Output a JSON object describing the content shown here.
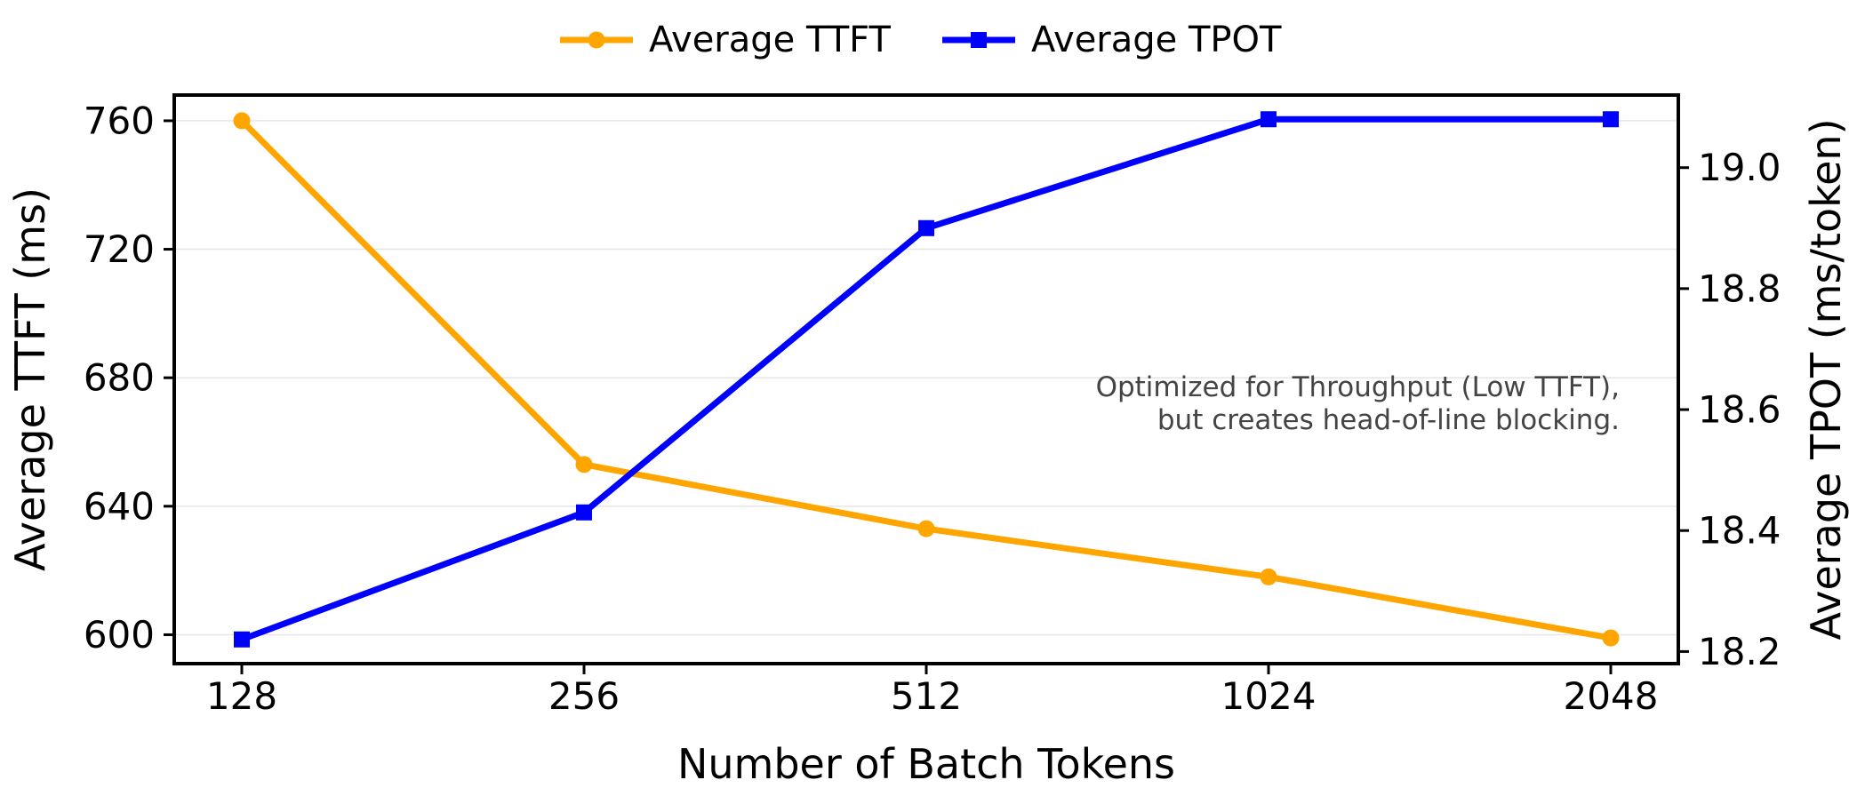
{
  "chart_data": {
    "type": "line",
    "x": [
      "128",
      "256",
      "512",
      "1024",
      "2048"
    ],
    "xlabel": "Number of Batch Tokens",
    "ylabel_left": "Average TTFT (ms)",
    "ylabel_right": "Average TPOT (ms/token)",
    "ylim_left": [
      591,
      768
    ],
    "ylim_right": [
      18.18,
      19.12
    ],
    "yticks_left": [
      600,
      640,
      680,
      720,
      760
    ],
    "yticks_right": [
      18.2,
      18.4,
      18.6,
      18.8,
      19.0
    ],
    "ytick_labels_left": [
      "600",
      "640",
      "680",
      "720",
      "760"
    ],
    "ytick_labels_right": [
      "18.2",
      "18.4",
      "18.6",
      "18.8",
      "19.0"
    ],
    "grid": true,
    "legend_position": "top-center",
    "series": [
      {
        "name": "Average TTFT",
        "axis": "left",
        "marker": "circle",
        "color": "#FFA500",
        "values": [
          760,
          653,
          633,
          618,
          599
        ]
      },
      {
        "name": "Average TPOT",
        "axis": "right",
        "marker": "square",
        "color": "#0000FF",
        "values": [
          18.22,
          18.43,
          18.9,
          19.08,
          19.08
        ]
      }
    ],
    "annotation": {
      "lines": [
        "Optimized for Throughput (Low TTFT),",
        "but creates head-of-line blocking."
      ],
      "color": "#444444"
    }
  }
}
